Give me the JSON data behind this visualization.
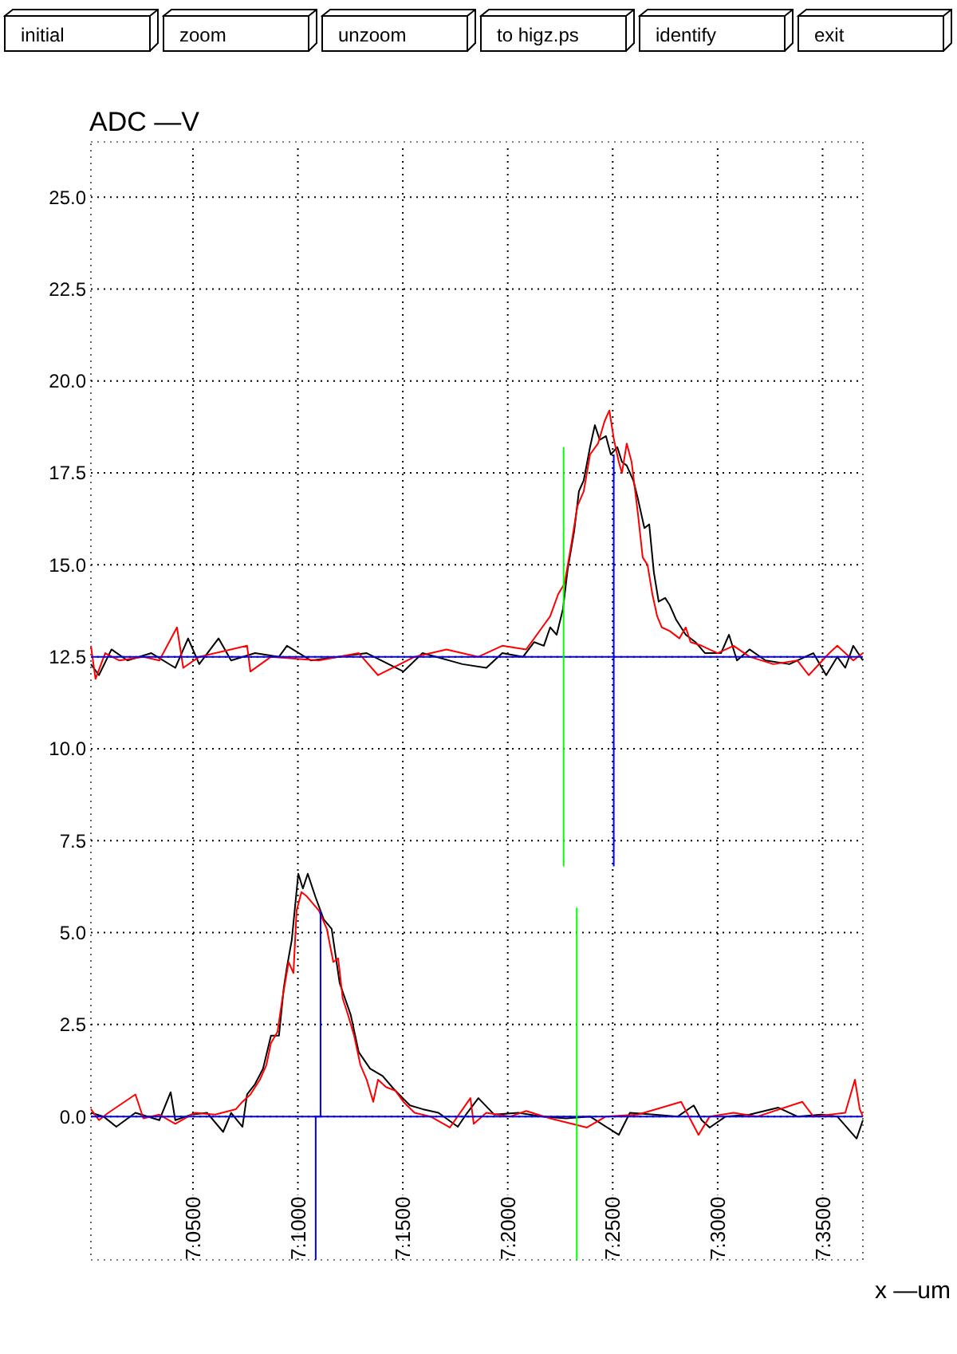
{
  "chart_data": {
    "type": "line",
    "ylabel": "ADC —V",
    "xlabel": "x —um",
    "annotations": [
      "initial",
      "zoom",
      "unzoom",
      "to higz.ps",
      "identify",
      "exit"
    ],
    "xlim": [
      7.0014,
      7.3692
    ],
    "ylim": [
      -3.9,
      26.5
    ],
    "xticks": [
      {
        "value": 7.05,
        "label": "7.0500"
      },
      {
        "value": 7.1,
        "label": "7.1000"
      },
      {
        "value": 7.15,
        "label": "7.1500"
      },
      {
        "value": 7.2,
        "label": "7.2000"
      },
      {
        "value": 7.25,
        "label": "7.2500"
      },
      {
        "value": 7.3,
        "label": "7.3000"
      },
      {
        "value": 7.35,
        "label": "7.3500"
      }
    ],
    "yticks": [
      {
        "value": 0,
        "label": "0.0"
      },
      2.5,
      {
        "value": 5,
        "label": "5.0"
      },
      7.5,
      {
        "value": 10,
        "label": "10.0"
      },
      12.5,
      {
        "value": 15,
        "label": "15.0"
      },
      17.5,
      {
        "value": 20,
        "label": "20.0"
      },
      22.5,
      {
        "value": 25,
        "label": "25.0"
      }
    ],
    "grid": true,
    "series": [
      {
        "color": "#000000",
        "x": [
          7.0014,
          7.0052,
          7.0112,
          7.0188,
          7.0302,
          7.0416,
          7.0477,
          7.053,
          7.0622,
          7.0682,
          7.0796,
          7.091,
          7.0948,
          7.1062,
          7.1328,
          7.1503,
          7.1594,
          7.1784,
          7.1898,
          7.1974,
          7.2073,
          7.2126,
          7.2172,
          7.2202,
          7.2233,
          7.2263,
          7.2286,
          7.2316,
          7.2339,
          7.2362,
          7.2392,
          7.2415,
          7.2438,
          7.2468,
          7.2491,
          7.2522,
          7.2544,
          7.2567,
          7.2598,
          7.262,
          7.2651,
          7.2674,
          7.2696,
          7.2719,
          7.275,
          7.2772,
          7.2803,
          7.2848,
          7.2894,
          7.294,
          7.3016,
          7.3054,
          7.3092,
          7.3152,
          7.3228,
          7.3342,
          7.3456,
          7.3517,
          7.357,
          7.3608,
          7.3646,
          7.3692
        ],
        "values": [
          12.3,
          12.0,
          12.7,
          12.4,
          12.6,
          12.2,
          13.0,
          12.3,
          13.0,
          12.4,
          12.6,
          12.5,
          12.8,
          12.4,
          12.6,
          12.1,
          12.6,
          12.3,
          12.2,
          12.6,
          12.5,
          12.9,
          12.8,
          13.3,
          13.1,
          13.8,
          14.9,
          15.9,
          17.0,
          17.3,
          18.2,
          18.8,
          18.4,
          18.5,
          18.0,
          18.2,
          17.8,
          17.7,
          17.3,
          16.8,
          16.0,
          16.1,
          14.8,
          14.0,
          14.1,
          13.9,
          13.5,
          13.1,
          12.9,
          12.6,
          12.6,
          13.1,
          12.4,
          12.7,
          12.4,
          12.3,
          12.6,
          12.0,
          12.5,
          12.2,
          12.8,
          12.4
        ]
      },
      {
        "color": "#ff0000",
        "x": [
          7.0014,
          7.0036,
          7.0082,
          7.015,
          7.0264,
          7.034,
          7.0424,
          7.0454,
          7.053,
          7.0758,
          7.0774,
          7.0872,
          7.11,
          7.129,
          7.1382,
          7.1556,
          7.1708,
          7.186,
          7.1974,
          7.2088,
          7.2164,
          7.2202,
          7.224,
          7.2271,
          7.2301,
          7.2332,
          7.2362,
          7.2392,
          7.243,
          7.2461,
          7.2484,
          7.2506,
          7.2529,
          7.2544,
          7.2567,
          7.259,
          7.262,
          7.2643,
          7.2666,
          7.2689,
          7.2712,
          7.2734,
          7.2772,
          7.2818,
          7.2848,
          7.2871,
          7.2924,
          7.3,
          7.3076,
          7.3152,
          7.3266,
          7.338,
          7.3434,
          7.3532,
          7.357,
          7.3646,
          7.3692
        ],
        "values": [
          12.8,
          11.9,
          12.6,
          12.4,
          12.5,
          12.4,
          13.3,
          12.2,
          12.5,
          12.8,
          12.1,
          12.5,
          12.4,
          12.6,
          12.0,
          12.5,
          12.7,
          12.5,
          12.8,
          12.7,
          13.3,
          13.6,
          14.2,
          14.5,
          15.5,
          16.6,
          17.0,
          18.0,
          18.3,
          18.9,
          19.2,
          18.4,
          17.8,
          17.5,
          18.3,
          17.8,
          16.4,
          15.2,
          15.0,
          14.2,
          13.6,
          13.3,
          13.2,
          13.0,
          13.3,
          12.9,
          12.8,
          12.6,
          12.8,
          12.5,
          12.3,
          12.4,
          12.0,
          12.6,
          12.8,
          12.4,
          12.6
        ]
      },
      {
        "color": "#000000",
        "x": [
          7.0014,
          7.0074,
          7.0135,
          7.0226,
          7.034,
          7.0394,
          7.0416,
          7.0492,
          7.0568,
          7.0644,
          7.0682,
          7.0736,
          7.0758,
          7.0796,
          7.0834,
          7.0872,
          7.091,
          7.0933,
          7.0948,
          7.0971,
          7.1002,
          7.1024,
          7.1047,
          7.1085,
          7.1123,
          7.1161,
          7.1199,
          7.1252,
          7.129,
          7.1344,
          7.1404,
          7.1458,
          7.1534,
          7.1594,
          7.167,
          7.1762,
          7.1807,
          7.186,
          7.1936,
          7.205,
          7.2164,
          7.2278,
          7.2392,
          7.2529,
          7.2582,
          7.2696,
          7.281,
          7.2886,
          7.2924,
          7.2962,
          7.3038,
          7.3152,
          7.3289,
          7.338,
          7.3494,
          7.357,
          7.3662,
          7.3692
        ],
        "values": [
          0.1,
          0.0,
          -0.28,
          0.1,
          -0.1,
          0.66,
          -0.1,
          0.05,
          0.1,
          -0.42,
          0.1,
          -0.28,
          0.6,
          0.88,
          1.3,
          2.2,
          2.2,
          3.5,
          4.06,
          4.8,
          6.6,
          6.2,
          6.6,
          5.95,
          5.36,
          5.1,
          3.63,
          2.76,
          1.75,
          1.3,
          1.1,
          0.74,
          0.3,
          0.2,
          0.1,
          -0.28,
          0.1,
          0.5,
          0.05,
          0.1,
          0.0,
          -0.05,
          0.0,
          -0.5,
          0.1,
          0.05,
          0.0,
          0.3,
          -0.1,
          -0.3,
          0.0,
          0.05,
          0.24,
          0.0,
          0.05,
          0.0,
          -0.6,
          -0.1
        ]
      },
      {
        "color": "#ff0000",
        "x": [
          7.0014,
          7.0052,
          7.0097,
          7.0226,
          7.0264,
          7.034,
          7.0416,
          7.0508,
          7.0606,
          7.0705,
          7.0736,
          7.0774,
          7.0819,
          7.085,
          7.0872,
          7.0903,
          7.0926,
          7.0941,
          7.0956,
          7.0979,
          7.0994,
          7.1017,
          7.104,
          7.107,
          7.11,
          7.1138,
          7.1169,
          7.1192,
          7.1214,
          7.1237,
          7.1268,
          7.1298,
          7.1328,
          7.1359,
          7.1382,
          7.142,
          7.1465,
          7.1503,
          7.1556,
          7.1632,
          7.1724,
          7.1822,
          7.1838,
          7.1898,
          7.2012,
          7.2088,
          7.2202,
          7.2377,
          7.2468,
          7.262,
          7.2826,
          7.2909,
          7.2962,
          7.3076,
          7.319,
          7.3403,
          7.3456,
          7.3608,
          7.3654,
          7.3677,
          7.3692
        ],
        "values": [
          0.2,
          -0.1,
          0.1,
          0.6,
          -0.05,
          0.05,
          -0.2,
          0.1,
          0.05,
          0.2,
          0.4,
          0.6,
          1.0,
          1.4,
          2.0,
          2.3,
          3.2,
          3.7,
          4.2,
          3.9,
          5.6,
          6.1,
          6.0,
          5.8,
          5.6,
          5.1,
          4.2,
          4.3,
          3.2,
          2.8,
          2.2,
          1.4,
          1.0,
          0.4,
          1.0,
          0.8,
          0.7,
          0.4,
          0.1,
          0.0,
          -0.3,
          0.5,
          -0.2,
          0.1,
          0.0,
          0.15,
          -0.05,
          -0.3,
          0.0,
          0.05,
          0.4,
          -0.5,
          0.0,
          0.1,
          0.0,
          0.4,
          0.0,
          0.1,
          1.0,
          0.2,
          0.0
        ]
      },
      {
        "color": "#0000ff",
        "x": [
          7.0014,
          7.3692
        ],
        "values": [
          12.5,
          12.5
        ]
      },
      {
        "color": "#0000ff",
        "x": [
          7.0014,
          7.3692
        ],
        "values": [
          0,
          0
        ]
      },
      {
        "color": "#00ff00",
        "x": [
          7.2266,
          7.2266
        ],
        "values": [
          18.2,
          6.8
        ]
      },
      {
        "color": "#0000ff",
        "x": [
          7.2505,
          7.2505
        ],
        "values": [
          18.0,
          6.8
        ]
      },
      {
        "color": "#00ff00",
        "x": [
          7.2329,
          7.2329
        ],
        "values": [
          5.68,
          -3.9
        ]
      },
      {
        "color": "#0000ff",
        "x": [
          7.1108,
          7.1108,
          7.1085,
          7.1085
        ],
        "values": [
          5.6,
          0,
          0,
          -3.9
        ]
      }
    ]
  }
}
